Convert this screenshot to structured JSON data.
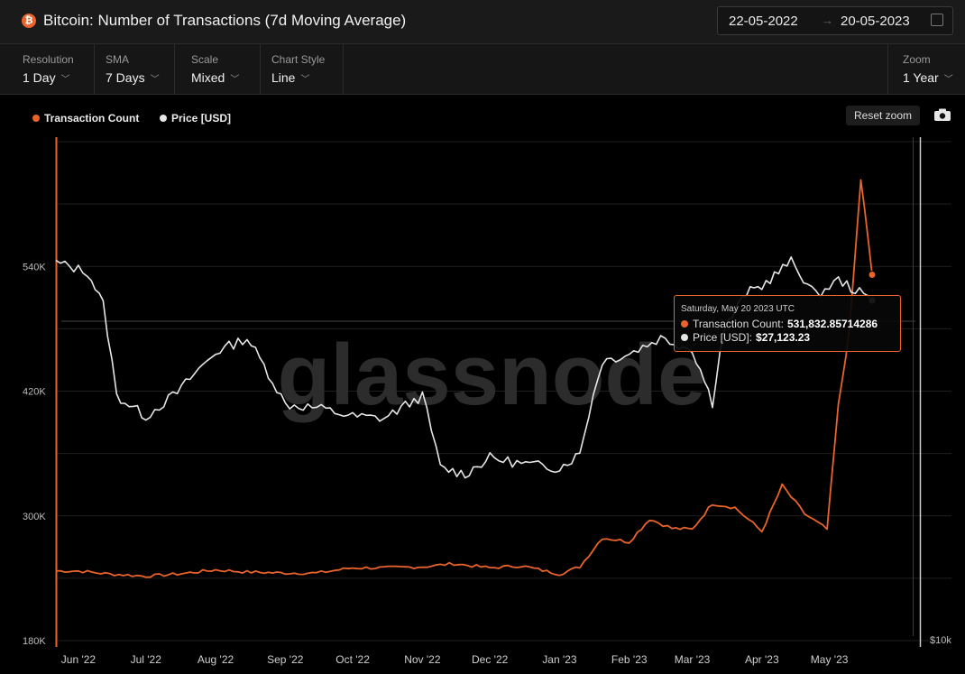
{
  "header": {
    "title": "Bitcoin: Number of Transactions (7d Moving Average)",
    "btc_symbol": "₿",
    "date_from": "22-05-2022",
    "date_to": "20-05-2023",
    "arrow": "→"
  },
  "controls": {
    "resolution": {
      "label": "Resolution",
      "value": "1 Day"
    },
    "sma": {
      "label": "SMA",
      "value": "7 Days"
    },
    "scale": {
      "label": "Scale",
      "value": "Mixed"
    },
    "chart_style": {
      "label": "Chart Style",
      "value": "Line"
    },
    "zoom": {
      "label": "Zoom",
      "value": "1 Year"
    }
  },
  "reset_zoom_label": "Reset zoom",
  "tooltip": {
    "date": "Saturday, May 20 2023 UTC",
    "tx_label": "Transaction Count:",
    "tx_value": "531,832.85714286",
    "price_label": "Price [USD]:",
    "price_value": "$27,123.23"
  },
  "watermark": "glassnode",
  "colors": {
    "transactions": "#e9632b",
    "price": "#e6e6e6",
    "background": "#000000",
    "header": "#1a1a1a"
  },
  "chart_data": {
    "type": "line",
    "title": "Bitcoin: Number of Transactions (7d Moving Average)",
    "x_ticks": [
      "Jun '22",
      "Jul '22",
      "Aug '22",
      "Sep '22",
      "Oct '22",
      "Nov '22",
      "Dec '22",
      "Jan '23",
      "Feb '23",
      "Mar '23",
      "Apr '23",
      "May '23"
    ],
    "y_left_ticks": [
      180000,
      300000,
      420000,
      540000
    ],
    "y_left_tick_labels": [
      "180K",
      "300K",
      "420K",
      "540K"
    ],
    "y_left_range": [
      180000,
      660000
    ],
    "y_right_label": "$10k",
    "legend_position": "top-left",
    "grid": true,
    "series": [
      {
        "name": "Transaction Count",
        "axis": "left",
        "x": [
          "2022-05-22",
          "2022-06-01",
          "2022-06-15",
          "2022-07-01",
          "2022-07-15",
          "2022-08-01",
          "2022-08-15",
          "2022-09-01",
          "2022-09-15",
          "2022-10-01",
          "2022-10-15",
          "2022-11-01",
          "2022-11-15",
          "2022-12-01",
          "2022-12-15",
          "2023-01-01",
          "2023-01-10",
          "2023-01-20",
          "2023-02-01",
          "2023-02-10",
          "2023-02-20",
          "2023-03-01",
          "2023-03-10",
          "2023-03-20",
          "2023-04-01",
          "2023-04-10",
          "2023-04-20",
          "2023-04-30",
          "2023-05-05",
          "2023-05-10",
          "2023-05-15",
          "2023-05-20"
        ],
        "values": [
          247000,
          247000,
          244000,
          242000,
          244000,
          248000,
          246000,
          245000,
          245000,
          250000,
          250000,
          251000,
          254000,
          250000,
          252000,
          244000,
          251000,
          279000,
          275000,
          297000,
          288000,
          287000,
          312000,
          308000,
          285000,
          329000,
          302000,
          287000,
          406000,
          480000,
          624000,
          532000
        ]
      },
      {
        "name": "Price [USD]",
        "axis": "right",
        "x": [
          "2022-05-22",
          "2022-06-05",
          "2022-06-12",
          "2022-06-18",
          "2022-07-01",
          "2022-07-15",
          "2022-08-01",
          "2022-08-15",
          "2022-09-01",
          "2022-09-15",
          "2022-10-01",
          "2022-10-15",
          "2022-11-01",
          "2022-11-09",
          "2022-11-20",
          "2022-12-01",
          "2022-12-15",
          "2023-01-01",
          "2023-01-10",
          "2023-01-20",
          "2023-02-01",
          "2023-02-15",
          "2023-03-01",
          "2023-03-10",
          "2023-03-15",
          "2023-03-25",
          "2023-04-01",
          "2023-04-14",
          "2023-04-25",
          "2023-05-05",
          "2023-05-20"
        ],
        "values": [
          30300,
          29500,
          26800,
          20500,
          19300,
          20700,
          23300,
          24300,
          20000,
          19800,
          19300,
          19200,
          20500,
          16600,
          16300,
          17100,
          16800,
          16600,
          17300,
          22700,
          23200,
          24300,
          23500,
          20100,
          24800,
          27700,
          28300,
          30400,
          27500,
          28800,
          27123
        ]
      }
    ]
  }
}
